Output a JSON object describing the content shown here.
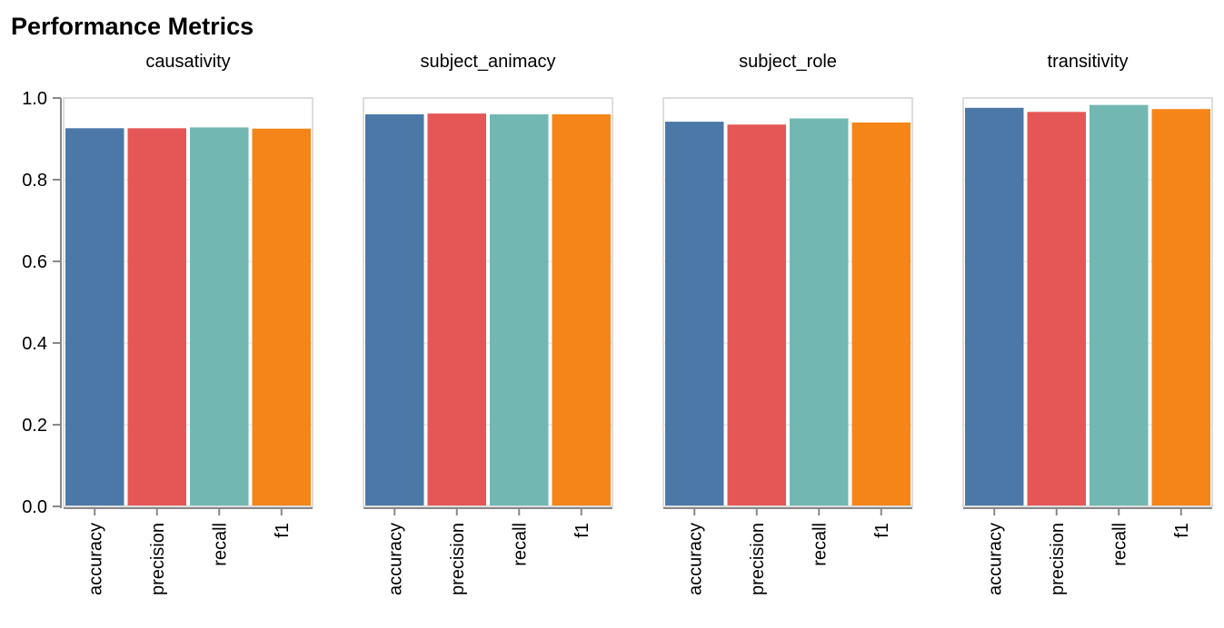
{
  "chart_data": {
    "type": "bar",
    "title": "Performance Metrics",
    "categories": [
      "accuracy",
      "precision",
      "recall",
      "f1"
    ],
    "colors": {
      "accuracy": "#4c78a8",
      "precision": "#e45756",
      "recall": "#72b7b2",
      "f1": "#f58518"
    },
    "ylim": [
      0,
      1.0
    ],
    "yticks": [
      "0.0",
      "0.2",
      "0.4",
      "0.6",
      "0.8",
      "1.0"
    ],
    "grid": true,
    "facets": [
      {
        "title": "causativity",
        "values": [
          0.926,
          0.926,
          0.928,
          0.925
        ]
      },
      {
        "title": "subject_animacy",
        "values": [
          0.96,
          0.962,
          0.96,
          0.96
        ]
      },
      {
        "title": "subject_role",
        "values": [
          0.942,
          0.935,
          0.95,
          0.94
        ]
      },
      {
        "title": "transitivity",
        "values": [
          0.976,
          0.966,
          0.983,
          0.973
        ]
      }
    ]
  }
}
